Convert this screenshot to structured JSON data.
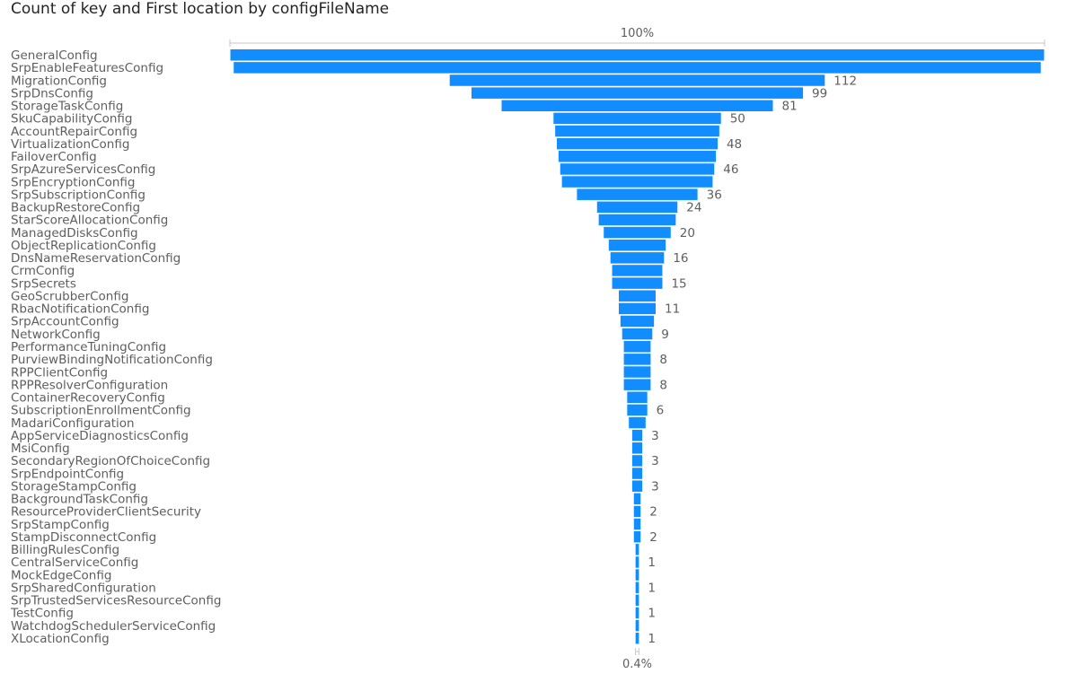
{
  "title": "Count of key and First location by configFileName",
  "chart_data": {
    "type": "funnel",
    "title": "Count of key and First location by configFileName",
    "top_percent_label": "100%",
    "bottom_percent_label": "0.4%",
    "bar_color": "#118DFF",
    "categories": [
      "GeneralConfig",
      "SrpEnableFeaturesConfig",
      "MigrationConfig",
      "SrpDnsConfig",
      "StorageTaskConfig",
      "SkuCapabilityConfig",
      "AccountRepairConfig",
      "VirtualizationConfig",
      "FailoverConfig",
      "SrpAzureServicesConfig",
      "SrpEncryptionConfig",
      "SrpSubscriptionConfig",
      "BackupRestoreConfig",
      "StarScoreAllocationConfig",
      "ManagedDisksConfig",
      "ObjectReplicationConfig",
      "DnsNameReservationConfig",
      "CrmConfig",
      "SrpSecrets",
      "GeoScrubberConfig",
      "RbacNotificationConfig",
      "SrpAccountConfig",
      "NetworkConfig",
      "PerformanceTuningConfig",
      "PurviewBindingNotificationConfig",
      "RPPClientConfig",
      "RPPResolverConfiguration",
      "ContainerRecoveryConfig",
      "SubscriptionEnrollmentConfig",
      "MadariConfiguration",
      "AppServiceDiagnosticsConfig",
      "MsiConfig",
      "SecondaryRegionOfChoiceConfig",
      "SrpEndpointConfig",
      "StorageStampConfig",
      "BackgroundTaskConfig",
      "ResourceProviderClientSecurity",
      "SrpStampConfig",
      "StampDisconnectConfig",
      "BillingRulesConfig",
      "CentralServiceConfig",
      "MockEdgeConfig",
      "SrpSharedConfiguration",
      "SrpTrustedServicesResourceConfig",
      "TestConfig",
      "WatchdogSchedulerServiceConfig",
      "XLocationConfig"
    ],
    "values": [
      243,
      241,
      112,
      99,
      81,
      50,
      49,
      48,
      47,
      46,
      45,
      36,
      24,
      23,
      20,
      17,
      16,
      15,
      15,
      11,
      11,
      10,
      9,
      8,
      8,
      8,
      8,
      6,
      6,
      5,
      3,
      3,
      3,
      3,
      3,
      2,
      2,
      2,
      2,
      1,
      1,
      1,
      1,
      1,
      1,
      1,
      1
    ],
    "value_labels": [
      "",
      "",
      "112",
      "",
      "81",
      "",
      "",
      "",
      "",
      "",
      "",
      "36",
      "",
      "",
      "20",
      "",
      "",
      "",
      "15",
      "",
      "11",
      "",
      "",
      "",
      "8",
      "",
      "8",
      "",
      "6",
      "",
      "",
      "",
      "3",
      "",
      "",
      "",
      "2",
      "",
      "2",
      "",
      "1",
      "",
      "1",
      "",
      "1",
      "",
      "1"
    ],
    "value_labels_between": [
      "",
      "",
      "",
      "99",
      "",
      "50",
      "",
      "48",
      "",
      "46",
      "",
      "",
      "24",
      "",
      "",
      "",
      "16",
      "",
      "",
      "",
      "",
      "",
      "9",
      "",
      "",
      "",
      "",
      "",
      "",
      "",
      "3",
      "",
      "",
      "",
      "3",
      "",
      "",
      "",
      "",
      "",
      "",
      "",
      "",
      "",
      "",
      "",
      ""
    ]
  }
}
